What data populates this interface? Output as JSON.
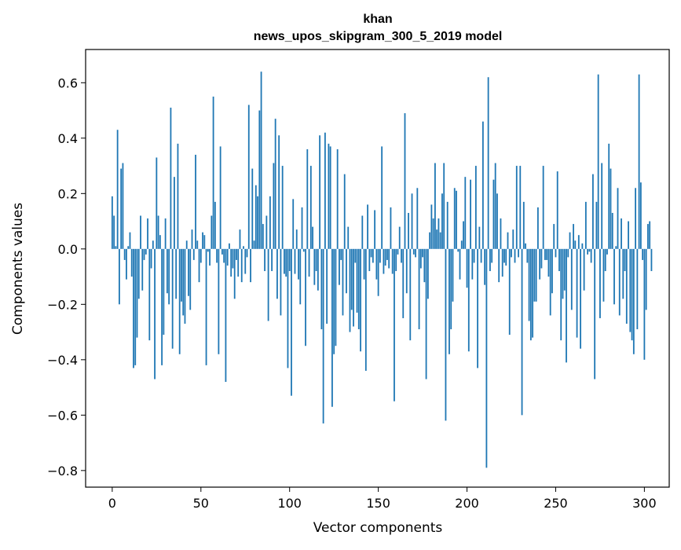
{
  "chart_data": {
    "type": "bar",
    "title_lines": [
      "khan",
      "news_upos_skipgram_300_5_2019 model"
    ],
    "xlabel": "Vector components",
    "ylabel": "Components values",
    "xlim": [
      -15,
      314
    ],
    "ylim": [
      -0.86,
      0.72
    ],
    "xticks": [
      0,
      50,
      100,
      150,
      200,
      250,
      300
    ],
    "yticks": [
      -0.8,
      -0.6,
      -0.4,
      -0.2,
      0.0,
      0.2,
      0.4,
      0.6
    ],
    "xtick_labels": [
      "0",
      "50",
      "100",
      "150",
      "200",
      "250",
      "300"
    ],
    "ytick_labels": [
      "−0.8",
      "−0.6",
      "−0.4",
      "−0.2",
      "0.0",
      "0.2",
      "0.4",
      "0.6"
    ],
    "bar_color": "#1f77b4",
    "grid": false,
    "values": [
      0.19,
      0.12,
      0.01,
      0.43,
      -0.2,
      0.29,
      0.31,
      -0.04,
      -0.11,
      0.01,
      0.06,
      -0.1,
      -0.43,
      -0.42,
      -0.32,
      -0.18,
      0.12,
      -0.15,
      -0.04,
      -0.02,
      0.11,
      -0.33,
      -0.07,
      0.03,
      -0.47,
      0.33,
      0.12,
      0.05,
      -0.42,
      -0.31,
      0.11,
      -0.16,
      -0.2,
      0.51,
      -0.36,
      0.26,
      -0.18,
      0.38,
      -0.38,
      -0.19,
      -0.24,
      -0.27,
      0.03,
      -0.17,
      -0.22,
      0.07,
      -0.04,
      0.34,
      0.03,
      -0.12,
      -0.05,
      0.06,
      0.05,
      -0.42,
      -0.01,
      -0.06,
      0.12,
      0.55,
      0.17,
      -0.05,
      -0.38,
      0.37,
      -0.02,
      -0.05,
      -0.48,
      -0.06,
      0.02,
      -0.1,
      -0.07,
      -0.18,
      -0.04,
      -0.1,
      0.07,
      -0.12,
      0.01,
      -0.09,
      -0.03,
      0.52,
      -0.12,
      0.29,
      0.03,
      0.23,
      0.19,
      0.5,
      0.64,
      0.09,
      -0.08,
      0.12,
      -0.26,
      0.19,
      -0.08,
      0.31,
      0.47,
      -0.18,
      0.41,
      -0.24,
      0.3,
      -0.09,
      -0.1,
      -0.43,
      -0.08,
      -0.53,
      0.18,
      -0.09,
      0.07,
      -0.11,
      -0.2,
      0.15,
      -0.01,
      -0.35,
      0.36,
      -0.1,
      0.3,
      0.08,
      -0.13,
      -0.08,
      -0.15,
      0.41,
      -0.29,
      -0.63,
      0.42,
      -0.27,
      0.38,
      0.37,
      -0.57,
      -0.38,
      -0.35,
      0.36,
      -0.13,
      -0.04,
      -0.24,
      0.27,
      -0.16,
      0.08,
      -0.3,
      -0.22,
      -0.28,
      -0.05,
      -0.23,
      -0.29,
      -0.37,
      0.12,
      -0.11,
      -0.44,
      0.16,
      -0.08,
      -0.03,
      -0.05,
      0.14,
      -0.11,
      -0.17,
      -0.05,
      0.37,
      -0.09,
      -0.06,
      -0.04,
      -0.07,
      0.15,
      -0.09,
      -0.55,
      -0.08,
      -0.02,
      0.08,
      -0.05,
      -0.25,
      0.49,
      -0.16,
      0.13,
      -0.33,
      0.2,
      -0.02,
      -0.03,
      0.22,
      -0.29,
      -0.07,
      -0.03,
      -0.12,
      -0.47,
      -0.18,
      0.06,
      0.16,
      0.11,
      0.31,
      0.07,
      0.11,
      0.06,
      0.2,
      0.31,
      -0.62,
      0.17,
      -0.38,
      -0.29,
      -0.19,
      0.22,
      0.21,
      -0.01,
      -0.11,
      0.03,
      0.1,
      0.26,
      -0.14,
      -0.37,
      0.25,
      -0.11,
      -0.05,
      0.3,
      -0.43,
      0.08,
      -0.05,
      0.46,
      -0.13,
      -0.79,
      0.62,
      -0.08,
      -0.05,
      0.25,
      0.31,
      0.2,
      -0.12,
      0.11,
      -0.1,
      -0.05,
      -0.06,
      0.06,
      -0.31,
      -0.03,
      0.07,
      -0.05,
      0.3,
      -0.03,
      0.3,
      -0.6,
      0.17,
      0.02,
      -0.05,
      -0.26,
      -0.33,
      -0.32,
      -0.19,
      -0.19,
      0.15,
      -0.11,
      -0.07,
      0.3,
      -0.04,
      -0.04,
      -0.1,
      -0.24,
      -0.16,
      0.09,
      -0.03,
      0.28,
      -0.08,
      -0.33,
      -0.18,
      -0.15,
      -0.41,
      -0.03,
      0.06,
      -0.22,
      0.09,
      0.03,
      -0.32,
      0.05,
      -0.36,
      0.02,
      -0.15,
      0.17,
      -0.02,
      -0.01,
      -0.05,
      0.27,
      -0.47,
      0.17,
      0.63,
      -0.25,
      0.31,
      -0.19,
      -0.08,
      -0.02,
      0.38,
      0.29,
      0.13,
      -0.2,
      0.01,
      0.22,
      -0.24,
      0.11,
      -0.18,
      -0.08,
      -0.27,
      0.1,
      -0.3,
      -0.33,
      -0.38,
      0.22,
      -0.29,
      0.63,
      0.24,
      -0.04,
      -0.4,
      -0.22,
      0.09,
      0.1,
      -0.08
    ]
  }
}
